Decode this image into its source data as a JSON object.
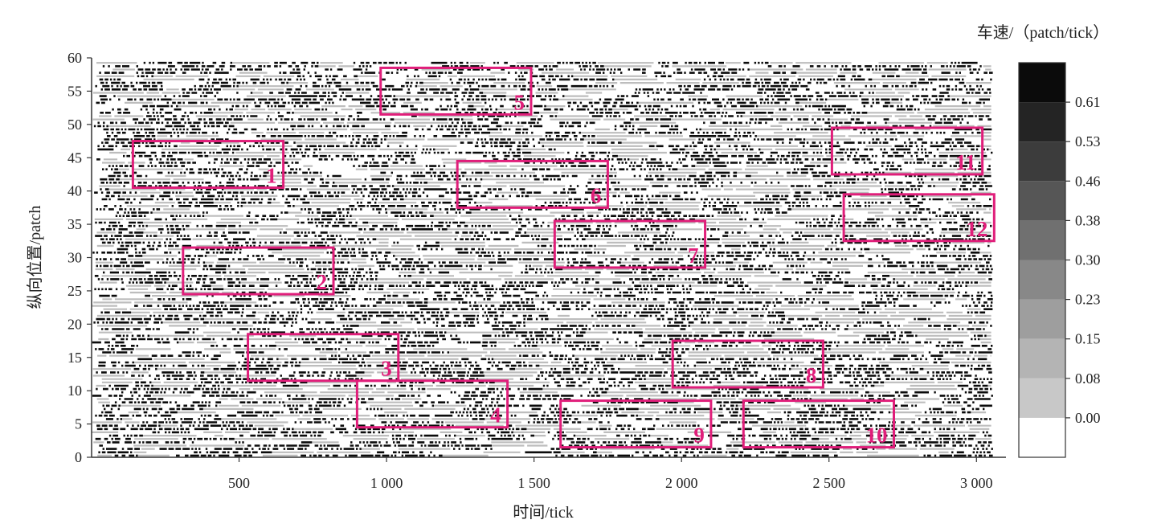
{
  "chart_data": {
    "type": "heatmap",
    "title": "",
    "xlabel": "时间/tick",
    "ylabel": "纵向位置/patch",
    "colorbar_label": "车速/（patch/tick）",
    "xlim": [
      0,
      3100
    ],
    "ylim": [
      0,
      60
    ],
    "x_ticks": [
      {
        "value": 500,
        "label": "500"
      },
      {
        "value": 1000,
        "label": "1 000"
      },
      {
        "value": 1500,
        "label": "1 500"
      },
      {
        "value": 2000,
        "label": "2 000"
      },
      {
        "value": 2500,
        "label": "2 500"
      },
      {
        "value": 3000,
        "label": "3 000"
      }
    ],
    "y_ticks": [
      {
        "value": 0,
        "label": "0"
      },
      {
        "value": 5,
        "label": "5"
      },
      {
        "value": 10,
        "label": "10"
      },
      {
        "value": 15,
        "label": "15"
      },
      {
        "value": 20,
        "label": "20"
      },
      {
        "value": 25,
        "label": "25"
      },
      {
        "value": 30,
        "label": "30"
      },
      {
        "value": 35,
        "label": "35"
      },
      {
        "value": 40,
        "label": "40"
      },
      {
        "value": 45,
        "label": "45"
      },
      {
        "value": 50,
        "label": "50"
      },
      {
        "value": 55,
        "label": "55"
      },
      {
        "value": 60,
        "label": "60"
      }
    ],
    "colorbar": {
      "levels": [
        0.0,
        0.08,
        0.15,
        0.23,
        0.3,
        0.38,
        0.46,
        0.53,
        0.61
      ],
      "labels": [
        "0.00",
        "0.08",
        "0.15",
        "0.23",
        "0.30",
        "0.38",
        "0.46",
        "0.53",
        "0.61"
      ],
      "band_colors": [
        "#ffffff",
        "#c8c8c8",
        "#b4b4b4",
        "#9e9e9e",
        "#888888",
        "#707070",
        "#565656",
        "#3c3c3c",
        "#242424",
        "#0b0b0b"
      ]
    },
    "regions": [
      {
        "label": "1",
        "x": [
          140,
          650
        ],
        "y": [
          40.5,
          47.5
        ]
      },
      {
        "label": "2",
        "x": [
          310,
          820
        ],
        "y": [
          24.5,
          31.5
        ]
      },
      {
        "label": "3",
        "x": [
          530,
          1040
        ],
        "y": [
          11.5,
          18.5
        ]
      },
      {
        "label": "4",
        "x": [
          900,
          1410
        ],
        "y": [
          4.5,
          11.5
        ]
      },
      {
        "label": "5",
        "x": [
          980,
          1490
        ],
        "y": [
          51.5,
          58.5
        ]
      },
      {
        "label": "6",
        "x": [
          1240,
          1750
        ],
        "y": [
          37.5,
          44.5
        ]
      },
      {
        "label": "7",
        "x": [
          1570,
          2080
        ],
        "y": [
          28.5,
          35.5
        ]
      },
      {
        "label": "8",
        "x": [
          1970,
          2480
        ],
        "y": [
          10.5,
          17.5
        ]
      },
      {
        "label": "9",
        "x": [
          1590,
          2100
        ],
        "y": [
          1.5,
          8.5
        ]
      },
      {
        "label": "10",
        "x": [
          2210,
          2720
        ],
        "y": [
          1.5,
          8.5
        ]
      },
      {
        "label": "11",
        "x": [
          2510,
          3020
        ],
        "y": [
          42.5,
          49.5
        ]
      },
      {
        "label": "12",
        "x": [
          2550,
          3060
        ],
        "y": [
          32.5,
          39.5
        ]
      }
    ],
    "grid": false,
    "legend": "colorbar-right"
  }
}
